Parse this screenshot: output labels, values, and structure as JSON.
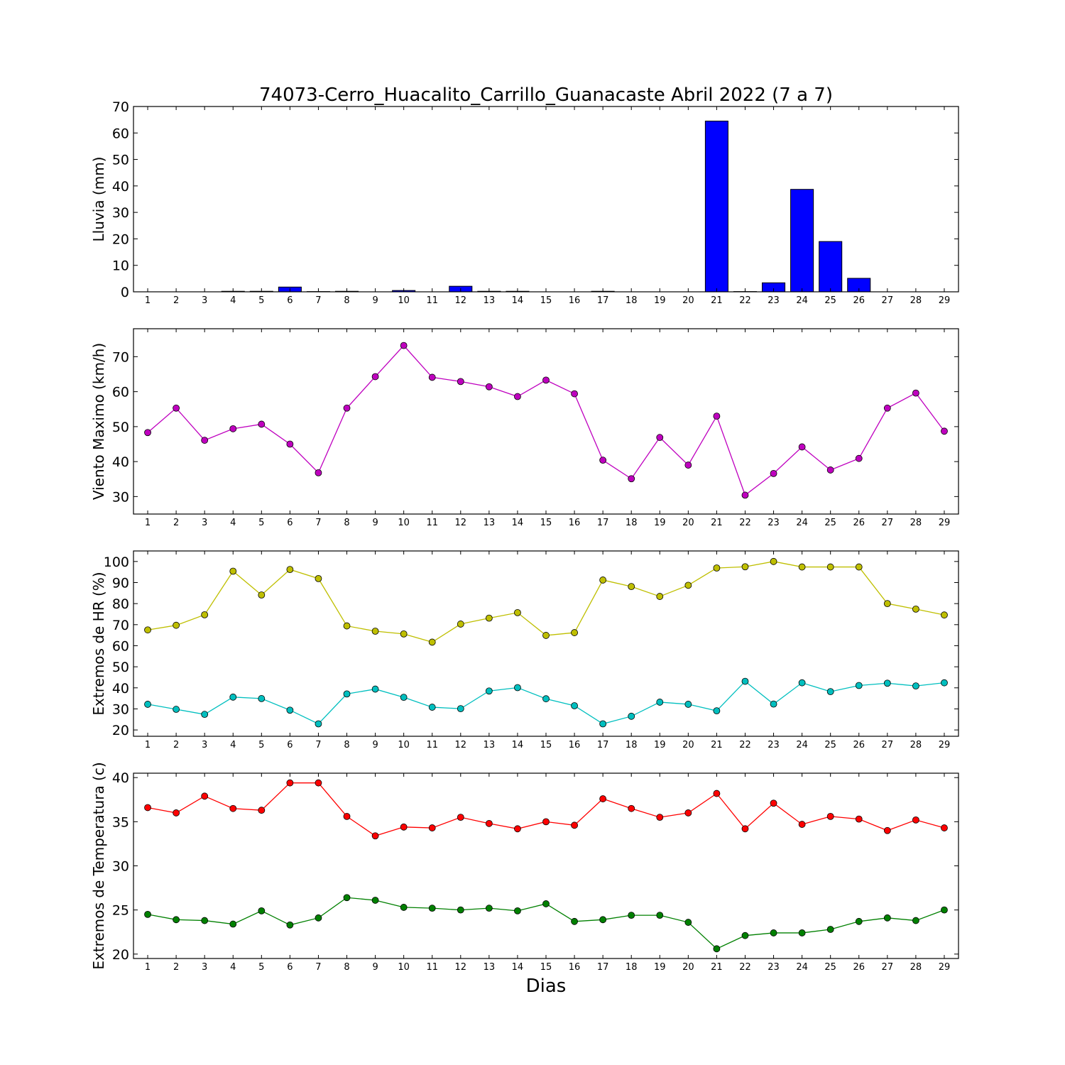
{
  "title": "74073-Cerro_Huacalito_Carrillo_Guanacaste Abril 2022  (7 a 7)",
  "xlabel": "Dias",
  "chart_data": [
    {
      "type": "bar",
      "ylabel": "Lluvia (mm)",
      "x": [
        1,
        2,
        3,
        4,
        5,
        6,
        7,
        8,
        9,
        10,
        11,
        12,
        13,
        14,
        15,
        16,
        17,
        18,
        19,
        20,
        21,
        22,
        23,
        24,
        25,
        26,
        27,
        28,
        29
      ],
      "ylim": [
        0,
        70
      ],
      "yticks": [
        0,
        10,
        20,
        30,
        40,
        50,
        60,
        70
      ],
      "color": "#0000ff",
      "values": [
        0,
        0,
        0,
        0.2,
        0.2,
        1.8,
        0.1,
        0.2,
        0,
        0.5,
        0,
        2.1,
        0.2,
        0.2,
        0,
        0,
        0.2,
        0,
        0,
        0,
        64.5,
        0.1,
        3.4,
        38.7,
        19.0,
        5.1,
        0,
        0,
        0
      ]
    },
    {
      "type": "line",
      "ylabel": "Viento Maximo (km/h)",
      "x": [
        1,
        2,
        3,
        4,
        5,
        6,
        7,
        8,
        9,
        10,
        11,
        12,
        13,
        14,
        15,
        16,
        17,
        18,
        19,
        20,
        21,
        22,
        23,
        24,
        25,
        26,
        27,
        28,
        29
      ],
      "ylim": [
        25,
        78
      ],
      "yticks": [
        30,
        40,
        50,
        60,
        70
      ],
      "series": [
        {
          "color": "#bf00bf",
          "values": [
            48.3,
            55.3,
            46.1,
            49.4,
            50.7,
            45.0,
            36.8,
            55.3,
            64.3,
            73.2,
            64.1,
            62.9,
            61.4,
            58.6,
            63.3,
            59.4,
            40.4,
            35.1,
            46.9,
            39.0,
            53.0,
            30.4,
            36.6,
            44.2,
            37.6,
            40.9,
            55.3,
            59.6,
            48.7
          ]
        }
      ]
    },
    {
      "type": "line",
      "ylabel": "Extremos de HR (%)",
      "x": [
        1,
        2,
        3,
        4,
        5,
        6,
        7,
        8,
        9,
        10,
        11,
        12,
        13,
        14,
        15,
        16,
        17,
        18,
        19,
        20,
        21,
        22,
        23,
        24,
        25,
        26,
        27,
        28,
        29
      ],
      "ylim": [
        17,
        105
      ],
      "yticks": [
        20,
        30,
        40,
        50,
        60,
        70,
        80,
        90,
        100
      ],
      "series": [
        {
          "color": "#bfbf00",
          "values": [
            67.5,
            69.7,
            74.7,
            95.4,
            84.1,
            96.2,
            91.9,
            69.4,
            66.9,
            65.6,
            61.7,
            70.3,
            73.1,
            75.7,
            64.9,
            66.2,
            91.2,
            88.1,
            83.4,
            88.7,
            96.9,
            97.5,
            100.0,
            97.4,
            97.4,
            97.4,
            80.0,
            77.4,
            74.6
          ]
        },
        {
          "color": "#00bfbf",
          "values": [
            32.2,
            29.8,
            27.4,
            35.6,
            34.9,
            29.4,
            22.9,
            37.1,
            39.4,
            35.5,
            30.8,
            30.1,
            38.5,
            40.1,
            34.8,
            31.5,
            22.9,
            26.5,
            33.2,
            32.2,
            29.1,
            43.1,
            32.3,
            42.4,
            38.2,
            41.1,
            42.2,
            40.9,
            42.4
          ]
        }
      ]
    },
    {
      "type": "line",
      "ylabel": "Extremos de Temperatura (c)",
      "x": [
        1,
        2,
        3,
        4,
        5,
        6,
        7,
        8,
        9,
        10,
        11,
        12,
        13,
        14,
        15,
        16,
        17,
        18,
        19,
        20,
        21,
        22,
        23,
        24,
        25,
        26,
        27,
        28,
        29
      ],
      "ylim": [
        19.5,
        40.5
      ],
      "yticks": [
        20,
        25,
        30,
        35,
        40
      ],
      "series": [
        {
          "color": "#ff0000",
          "values": [
            36.6,
            36.0,
            37.9,
            36.5,
            36.3,
            39.4,
            39.4,
            35.6,
            33.4,
            34.4,
            34.3,
            35.5,
            34.8,
            34.2,
            35.0,
            34.6,
            37.6,
            36.5,
            35.5,
            36.0,
            38.2,
            34.2,
            37.1,
            34.7,
            35.6,
            35.3,
            34.0,
            35.2,
            34.3
          ]
        },
        {
          "color": "#008000",
          "values": [
            24.5,
            23.9,
            23.8,
            23.4,
            24.9,
            23.3,
            24.1,
            26.4,
            26.1,
            25.3,
            25.2,
            25.0,
            25.2,
            24.9,
            25.7,
            23.7,
            23.9,
            24.4,
            24.4,
            23.6,
            20.6,
            22.1,
            22.4,
            22.4,
            22.8,
            23.7,
            24.1,
            23.8,
            25.0
          ]
        }
      ]
    }
  ]
}
